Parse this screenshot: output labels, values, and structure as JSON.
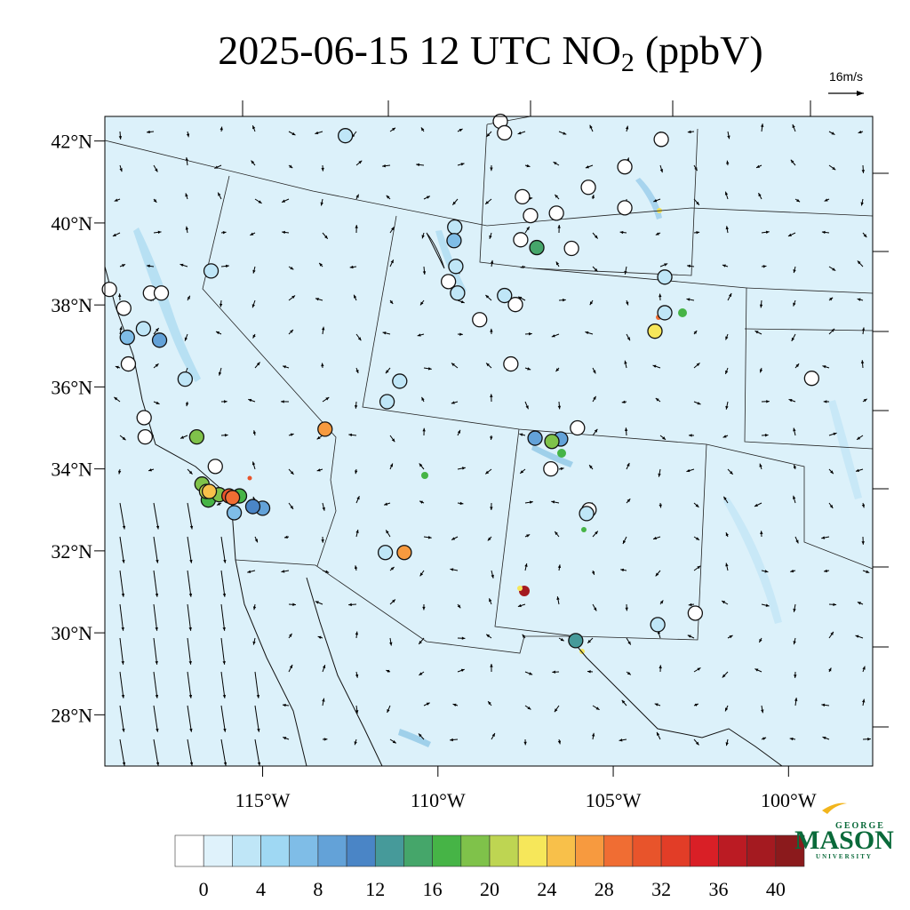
{
  "title": {
    "prefix": "2025-06-15 12 UTC NO",
    "subscript": "2",
    "suffix": "(ppbV)"
  },
  "wind_reference": "16m/s",
  "map": {
    "lon_range": [
      -119.5,
      -97.6
    ],
    "lat_range": [
      26.75,
      42.6
    ],
    "lat_ticks": [
      {
        "value": 42,
        "label": "42°N"
      },
      {
        "value": 40,
        "label": "40°N"
      },
      {
        "value": 38,
        "label": "38°N"
      },
      {
        "value": 36,
        "label": "36°N"
      },
      {
        "value": 34,
        "label": "34°N"
      },
      {
        "value": 32,
        "label": "32°N"
      },
      {
        "value": 30,
        "label": "30°N"
      },
      {
        "value": 28,
        "label": "28°N"
      }
    ],
    "lon_ticks": [
      {
        "value": -115,
        "label": "115°W"
      },
      {
        "value": -110,
        "label": "110°W"
      },
      {
        "value": -105,
        "label": "105°W"
      },
      {
        "value": -100,
        "label": "100°W"
      }
    ]
  },
  "stations": {
    "lon": [
      -119.37,
      -118.96,
      -118.2,
      -117.89,
      -118.83,
      -118.38,
      -118.35,
      -116.35,
      -108.22,
      -108.1,
      -107.59,
      -107.36,
      -106.62,
      -105.71,
      -104.67,
      -103.63,
      -104.67,
      -106.19,
      -107.64,
      -107.92,
      -107.79,
      -108.81,
      -99.34,
      -102.66,
      -106.78,
      -106.02,
      -109.7,
      -105.69,
      -112.64,
      -116.47,
      -117.21,
      -111.09,
      -111.45,
      -111.5,
      -109.52,
      -109.49,
      -109.44,
      -103.53,
      -103.53,
      -103.73,
      -105.76,
      -108.1,
      -118.4,
      -109.54,
      -118.86,
      -117.94,
      -115.0,
      -115.28,
      -115.81,
      -106.5,
      -107.23,
      -107.18,
      -116.88,
      -106.75,
      -106.07,
      -116.55,
      -116.24,
      -115.66,
      -116.73,
      -116.6,
      -103.81,
      -113.22,
      -110.96,
      -116.52,
      -115.96,
      -115.86
    ],
    "lat": [
      38.38,
      37.92,
      38.29,
      38.29,
      36.56,
      35.25,
      34.78,
      34.06,
      42.48,
      42.2,
      40.64,
      40.18,
      40.24,
      40.87,
      41.37,
      42.04,
      40.37,
      39.38,
      39.59,
      36.56,
      38.01,
      37.64,
      36.21,
      30.48,
      34.0,
      35.0,
      38.57,
      33.0,
      42.13,
      38.83,
      36.19,
      36.14,
      35.64,
      31.96,
      39.9,
      38.94,
      38.29,
      38.68,
      37.81,
      30.2,
      32.91,
      38.23,
      37.42,
      39.57,
      37.21,
      37.14,
      33.04,
      33.08,
      32.93,
      34.73,
      34.75,
      39.4,
      34.78,
      34.67,
      29.81,
      33.24,
      33.37,
      33.34,
      33.63,
      33.45,
      37.36,
      34.97,
      31.96,
      33.45,
      33.34,
      33.3
    ],
    "no2": [
      0,
      0,
      0,
      0,
      0,
      0,
      0,
      0,
      0,
      0,
      0,
      0,
      0,
      0,
      0,
      0,
      0,
      0,
      0,
      0,
      0,
      0,
      0,
      0,
      0,
      0,
      0,
      0,
      3,
      3,
      3,
      3,
      3,
      3,
      3,
      3,
      3,
      3,
      3,
      3,
      3,
      3,
      3,
      7,
      8,
      9,
      9,
      11,
      8,
      9,
      9,
      15,
      20,
      19,
      13,
      17,
      20,
      18,
      19,
      22,
      24,
      27,
      27,
      26,
      31,
      30
    ]
  },
  "colorbar": {
    "boundaries": [
      0,
      2,
      4,
      6,
      8,
      10,
      12,
      14,
      16,
      18,
      20,
      22,
      24,
      26,
      28,
      30,
      32,
      34,
      36,
      38,
      40
    ],
    "colors": [
      "#ffffff",
      "#dff2fb",
      "#bfe6f7",
      "#9fd8f3",
      "#7fbde7",
      "#63a2d8",
      "#4a85c6",
      "#469a9a",
      "#45a66a",
      "#46b446",
      "#7fc24a",
      "#bed552",
      "#f6e75a",
      "#f8c04a",
      "#f79a3f",
      "#f06d33",
      "#e8542b",
      "#e23d27",
      "#d91f26",
      "#bb1b23",
      "#a41a20",
      "#8b1a1c"
    ],
    "ticks": [
      0,
      4,
      8,
      12,
      16,
      20,
      24,
      28,
      32,
      36,
      40
    ]
  },
  "logo": {
    "line1": "GEORGE",
    "line2": "MASON",
    "line3": "UNIVERSITY"
  }
}
